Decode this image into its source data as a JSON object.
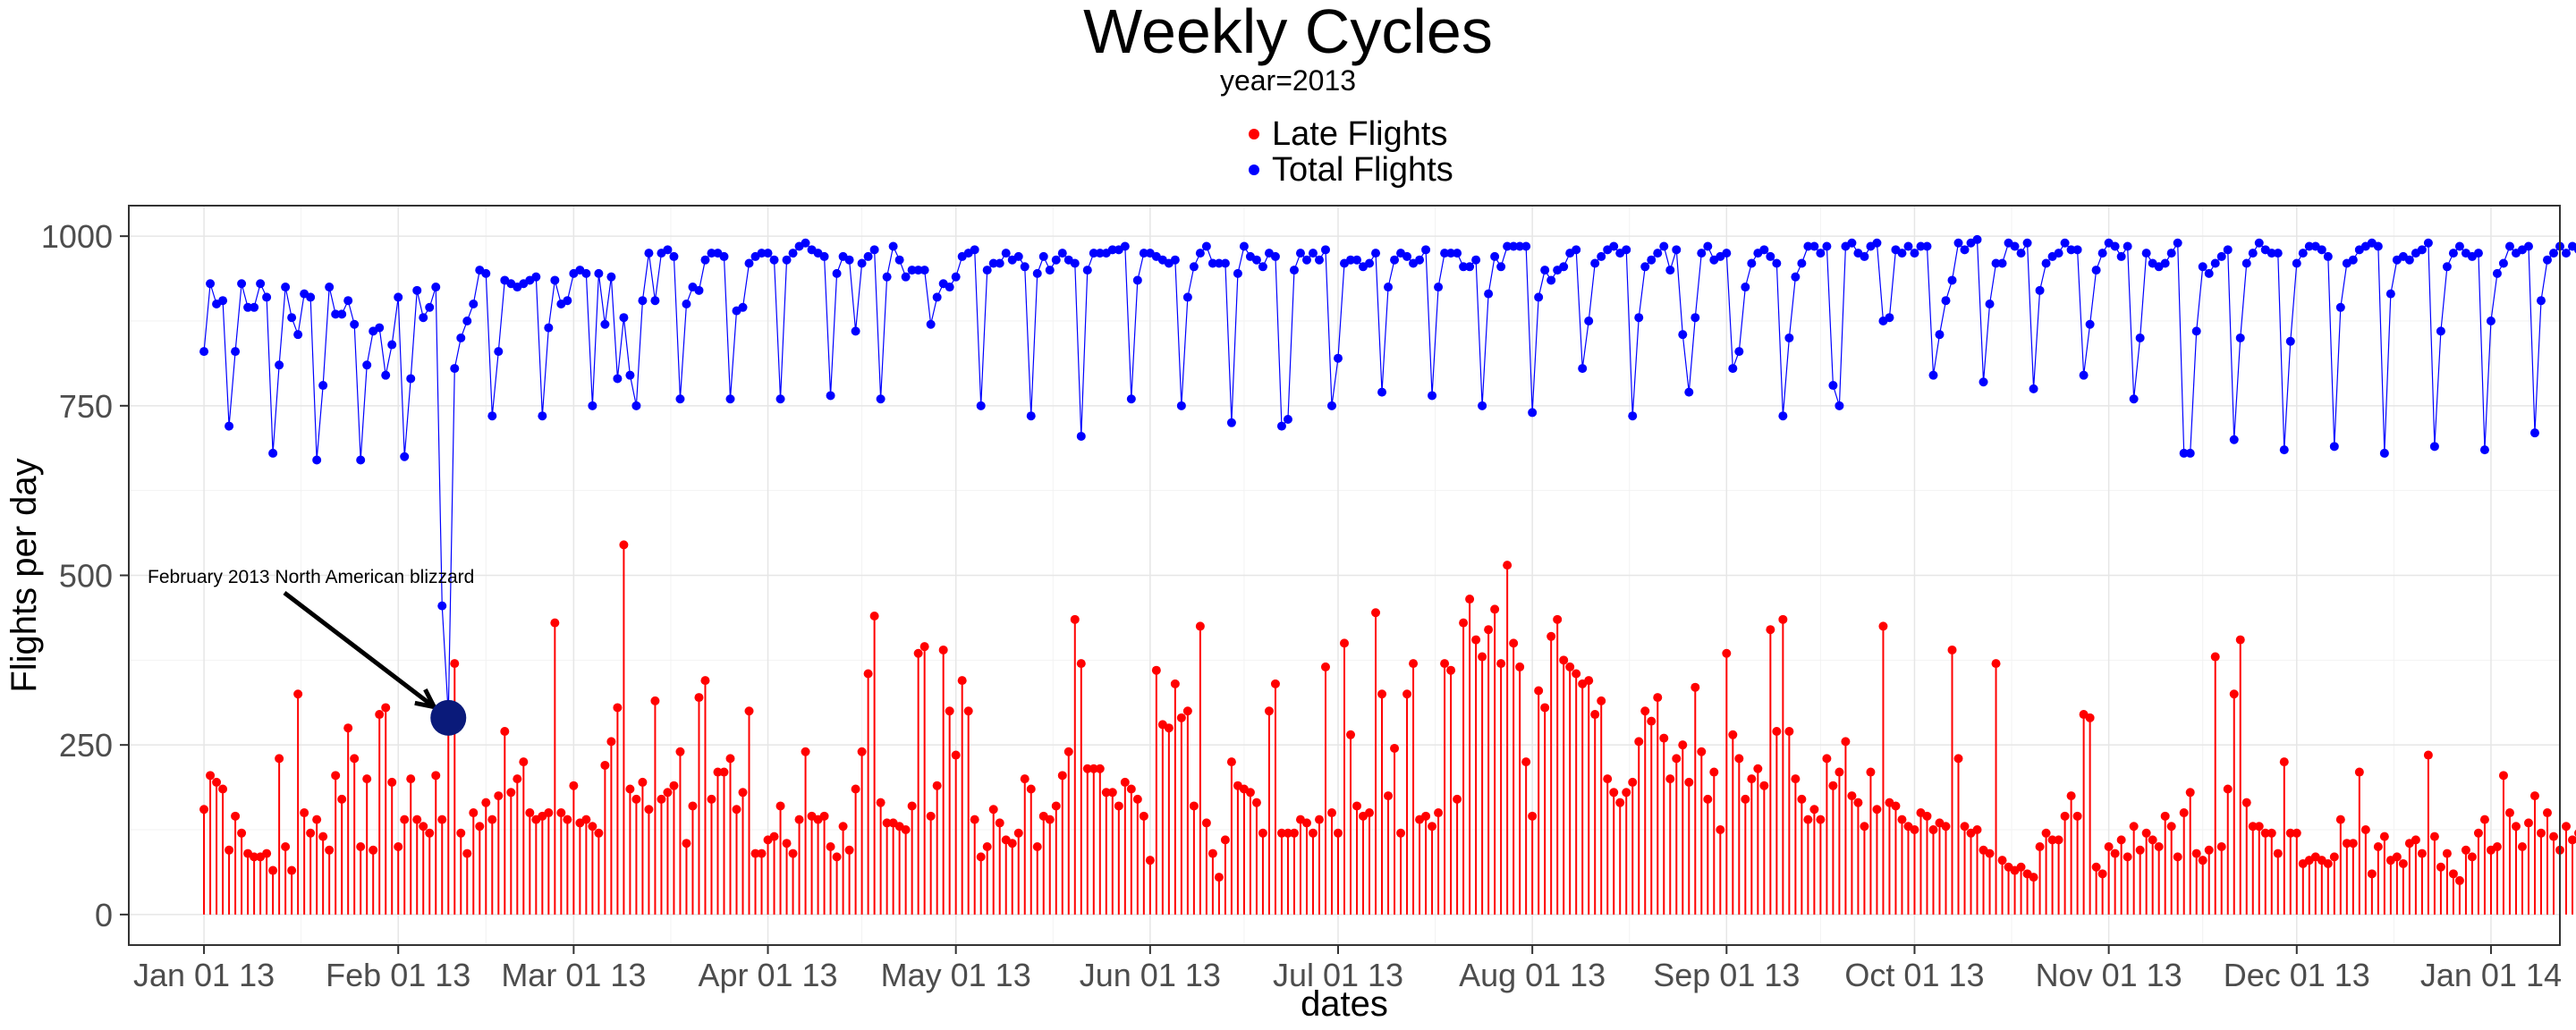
{
  "chart_data": {
    "type": "line",
    "title": "Weekly Cycles",
    "subtitle": "year=2013",
    "xlabel": "dates",
    "ylabel": "Flights per day",
    "x_range": [
      "2012-12-20",
      "2014-01-12"
    ],
    "ylim": [
      -45,
      1045
    ],
    "y_ticks": [
      0,
      250,
      500,
      750,
      1000
    ],
    "y_tick_labels": [
      "0",
      "250",
      "500",
      "750",
      "1000"
    ],
    "x_ticks": [
      "2013-01-01",
      "2013-02-01",
      "2013-03-01",
      "2013-04-01",
      "2013-05-01",
      "2013-06-01",
      "2013-07-01",
      "2013-08-01",
      "2013-09-01",
      "2013-10-01",
      "2013-11-01",
      "2013-12-01",
      "2014-01-01"
    ],
    "x_tick_labels": [
      "Jan 01 13",
      "Feb 01 13",
      "Mar 01 13",
      "Apr 01 13",
      "May 01 13",
      "Jun 01 13",
      "Jul 01 13",
      "Aug 01 13",
      "Sep 01 13",
      "Oct 01 13",
      "Nov 01 13",
      "Dec 01 13",
      "Jan 01 14"
    ],
    "grid": true,
    "legend_position": "top-center",
    "legend": [
      {
        "label": "Late Flights",
        "color": "#ff0000"
      },
      {
        "label": "Total Flights",
        "color": "#0000ff"
      }
    ],
    "x_start": "2013-01-01",
    "series": [
      {
        "name": "Total Flights",
        "color": "#0000ff",
        "style": "line+points",
        "values": [
          830,
          930,
          900,
          905,
          720,
          830,
          930,
          895,
          895,
          930,
          910,
          680,
          810,
          925,
          880,
          855,
          915,
          910,
          670,
          780,
          925,
          885,
          885,
          905,
          870,
          670,
          810,
          860,
          865,
          795,
          840,
          910,
          675,
          790,
          920,
          880,
          895,
          925,
          455,
          295,
          805,
          850,
          875,
          900,
          950,
          945,
          735,
          830,
          935,
          930,
          925,
          930,
          935,
          940,
          735,
          865,
          935,
          900,
          905,
          945,
          950,
          945,
          750,
          945,
          870,
          940,
          790,
          880,
          795,
          750,
          905,
          975,
          905,
          975,
          980,
          970,
          760,
          900,
          925,
          920,
          965,
          975,
          975,
          970,
          760,
          890,
          895,
          960,
          970,
          975,
          975,
          965,
          760,
          965,
          975,
          985,
          990,
          980,
          975,
          970,
          765,
          945,
          970,
          965,
          860,
          960,
          970,
          980,
          760,
          940,
          985,
          965,
          940,
          950,
          950,
          950,
          870,
          910,
          930,
          925,
          940,
          970,
          975,
          980,
          750,
          950,
          960,
          960,
          975,
          965,
          970,
          955,
          735,
          945,
          970,
          950,
          965,
          975,
          965,
          960,
          705,
          950,
          975,
          975,
          975,
          980,
          980,
          985,
          760,
          935,
          975,
          975,
          970,
          965,
          960,
          965,
          750,
          910,
          955,
          975,
          985,
          960,
          960,
          960,
          725,
          945,
          985,
          970,
          965,
          955,
          975,
          970,
          720,
          730,
          950,
          975,
          965,
          975,
          965,
          980,
          750,
          820,
          960,
          965,
          965,
          955,
          960,
          975,
          770,
          925,
          965,
          975,
          970,
          960,
          965,
          980,
          765,
          925,
          975,
          975,
          975,
          955,
          955,
          965,
          750,
          915,
          970,
          955,
          985,
          985,
          985,
          985,
          740,
          910,
          950,
          935,
          950,
          955,
          975,
          980,
          805,
          875,
          960,
          970,
          980,
          985,
          975,
          980,
          735,
          880,
          955,
          965,
          975,
          985,
          950,
          980,
          855,
          770,
          880,
          975,
          985,
          965,
          970,
          975,
          805,
          830,
          925,
          960,
          975,
          980,
          970,
          960,
          735,
          850,
          940,
          960,
          985,
          985,
          975,
          985,
          780,
          750,
          985,
          990,
          975,
          970,
          985,
          990,
          875,
          880,
          980,
          975,
          985,
          975,
          985,
          985,
          795,
          855,
          905,
          935,
          990,
          980,
          990,
          995,
          785,
          900,
          960,
          960,
          990,
          985,
          975,
          990,
          775,
          920,
          960,
          970,
          975,
          990,
          980,
          980,
          795,
          870,
          950,
          975,
          990,
          985,
          970,
          985,
          760,
          850,
          975,
          960,
          955,
          960,
          975,
          990,
          680,
          680,
          860,
          955,
          945,
          960,
          970,
          980,
          700,
          850,
          960,
          975,
          990,
          980,
          975,
          975,
          685,
          845,
          960,
          975,
          985,
          985,
          980,
          970,
          690,
          895,
          960,
          965,
          980,
          985,
          990,
          985,
          680,
          915,
          965,
          970,
          965,
          975,
          980,
          990,
          690,
          860,
          955,
          975,
          985,
          975,
          970,
          975,
          685,
          875,
          945,
          960,
          985,
          975,
          980,
          985,
          710,
          905,
          965,
          975,
          985,
          975,
          985,
          980,
          680,
          850,
          965,
          975,
          980,
          970,
          985,
          980,
          680,
          875,
          965,
          975,
          980,
          975,
          985,
          985,
          710,
          895,
          965,
          970,
          980,
          975,
          975,
          980,
          710,
          865,
          960,
          965,
          980,
          975,
          975,
          985,
          720,
          855,
          960,
          980,
          980,
          985,
          975,
          980,
          730,
          830,
          950,
          975,
          990,
          985,
          970,
          985,
          650,
          660,
          850,
          940,
          985,
          990,
          985,
          980,
          810,
          670,
          805,
          905,
          930,
          955,
          960,
          960,
          560,
          800,
          960,
          855,
          955,
          965,
          960,
          955,
          800,
          890,
          965,
          955,
          935,
          950,
          955,
          960,
          750,
          720,
          965,
          930,
          820,
          870,
          945,
          955,
          760
        ]
      },
      {
        "name": "Late Flights",
        "color": "#ff0000",
        "style": "lollipop",
        "values": [
          155,
          205,
          195,
          185,
          95,
          145,
          120,
          90,
          85,
          85,
          90,
          65,
          230,
          100,
          65,
          325,
          150,
          120,
          140,
          115,
          95,
          205,
          170,
          275,
          230,
          100,
          200,
          95,
          295,
          305,
          195,
          100,
          140,
          200,
          140,
          130,
          120,
          205,
          140,
          290,
          370,
          120,
          90,
          150,
          130,
          165,
          140,
          175,
          270,
          180,
          200,
          225,
          150,
          140,
          145,
          150,
          430,
          150,
          140,
          190,
          135,
          140,
          130,
          120,
          220,
          255,
          305,
          545,
          185,
          170,
          195,
          155,
          315,
          170,
          180,
          190,
          240,
          105,
          160,
          320,
          345,
          170,
          210,
          210,
          230,
          155,
          180,
          300,
          90,
          90,
          110,
          115,
          160,
          105,
          90,
          140,
          240,
          145,
          140,
          145,
          100,
          85,
          130,
          95,
          185,
          240,
          355,
          440,
          165,
          135,
          135,
          130,
          125,
          160,
          385,
          395,
          145,
          190,
          390,
          300,
          235,
          345,
          300,
          140,
          85,
          100,
          155,
          135,
          110,
          105,
          120,
          200,
          185,
          100,
          145,
          140,
          160,
          205,
          240,
          435,
          370,
          215,
          215,
          215,
          180,
          180,
          160,
          195,
          185,
          170,
          145,
          80,
          360,
          280,
          275,
          340,
          290,
          300,
          160,
          425,
          135,
          90,
          55,
          110,
          225,
          190,
          185,
          180,
          165,
          120,
          300,
          340,
          120,
          120,
          120,
          140,
          135,
          120,
          140,
          365,
          150,
          120,
          400,
          265,
          160,
          145,
          150,
          445,
          325,
          175,
          245,
          120,
          325,
          370,
          140,
          145,
          130,
          150,
          370,
          360,
          170,
          430,
          465,
          405,
          380,
          420,
          450,
          370,
          515,
          400,
          365,
          225,
          145,
          330,
          305,
          410,
          435,
          375,
          365,
          355,
          340,
          345,
          295,
          315,
          200,
          180,
          165,
          180,
          195,
          255,
          300,
          285,
          320,
          260,
          200,
          230,
          250,
          195,
          335,
          240,
          170,
          210,
          125,
          385,
          265,
          230,
          170,
          200,
          215,
          190,
          420,
          270,
          435,
          270,
          200,
          170,
          140,
          155,
          140,
          230,
          190,
          210,
          255,
          175,
          165,
          130,
          210,
          155,
          425,
          165,
          160,
          140,
          130,
          125,
          150,
          145,
          125,
          135,
          130,
          390,
          230,
          130,
          120,
          125,
          95,
          90,
          370,
          80,
          70,
          65,
          70,
          60,
          55,
          100,
          120,
          110,
          110,
          145,
          175,
          145,
          295,
          290,
          70,
          60,
          100,
          90,
          110,
          85,
          130,
          95,
          120,
          110,
          100,
          145,
          130,
          85,
          150,
          180,
          90,
          80,
          95,
          380,
          100,
          185,
          325,
          405,
          165,
          130,
          130,
          120,
          120,
          90,
          225,
          120,
          120,
          75,
          80,
          85,
          80,
          75,
          85,
          140,
          105,
          105,
          210,
          125,
          60,
          100,
          115,
          80,
          85,
          75,
          105,
          110,
          90,
          235,
          115,
          70,
          90,
          60,
          50,
          95,
          85,
          120,
          140,
          95,
          100,
          205,
          150,
          130,
          100,
          135,
          175,
          120,
          150,
          115,
          95,
          130,
          110,
          120,
          130,
          120,
          105,
          210,
          125,
          70,
          65,
          115,
          70,
          60,
          230,
          215,
          285,
          305,
          130,
          85,
          85,
          195,
          165,
          145,
          225,
          110,
          380,
          250,
          265,
          240,
          405,
          255,
          300,
          160,
          190,
          180,
          170,
          195,
          270,
          230,
          255,
          440,
          310,
          300,
          290,
          405,
          440,
          125,
          120,
          245,
          225,
          155,
          295,
          190,
          125
        ]
      }
    ],
    "annotation": {
      "text": "February 2013 North American blizzard",
      "point_date": "2013-02-09",
      "point_value": 290
    }
  }
}
